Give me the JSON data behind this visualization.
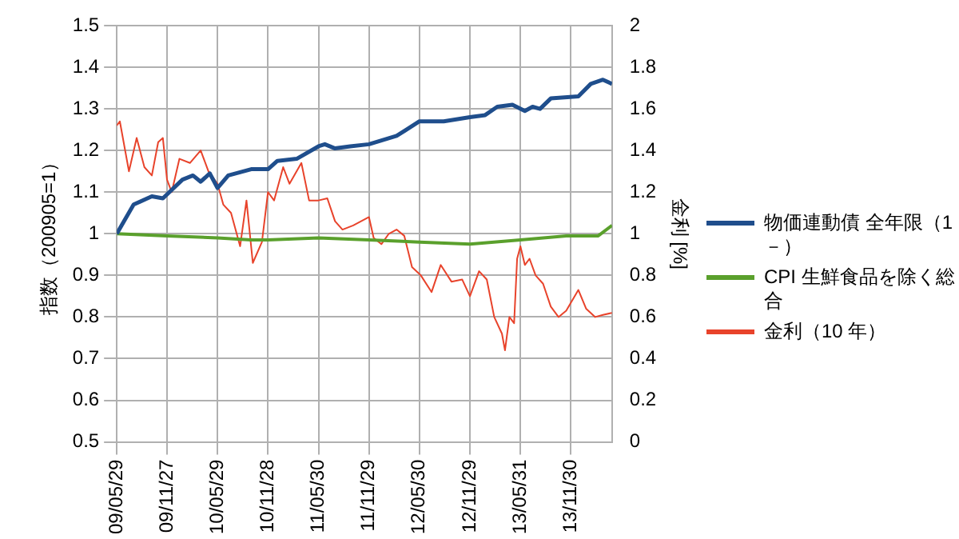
{
  "chart_data": {
    "type": "line",
    "ylabel": "指数（200905=1）",
    "y2label": "金利 [%]",
    "xlim": [
      "2009-05-29",
      "2014-04-28"
    ],
    "xticks": [
      {
        "value": "2009-05-29",
        "label": "09/05/29"
      },
      {
        "value": "2009-11-27",
        "label": "09/11/27"
      },
      {
        "value": "2010-05-29",
        "label": "10/05/29"
      },
      {
        "value": "2010-11-28",
        "label": "10/11/28"
      },
      {
        "value": "2011-05-30",
        "label": "11/05/30"
      },
      {
        "value": "2011-11-29",
        "label": "11/11/29"
      },
      {
        "value": "2012-05-30",
        "label": "12/05/30"
      },
      {
        "value": "2012-11-29",
        "label": "12/11/29"
      },
      {
        "value": "2013-05-31",
        "label": "13/05/31"
      },
      {
        "value": "2013-11-30",
        "label": "13/11/30"
      }
    ],
    "ylim": [
      0.5,
      1.5
    ],
    "yticks": [
      0.5,
      0.6,
      0.7,
      0.8,
      0.9,
      1,
      1.1,
      1.2,
      1.3,
      1.4,
      1.5
    ],
    "y2lim": [
      0,
      2
    ],
    "y2ticks": [
      0,
      0.2,
      0.4,
      0.6,
      0.8,
      1,
      1.2,
      1.4,
      1.6,
      1.8,
      2
    ],
    "grid": true,
    "legend": "right",
    "marker": "none",
    "line_style": "solid",
    "series": [
      {
        "name": "物価連動債 全年限（1－）",
        "color": "#1f4e8c",
        "x": [
          "2009-05-29",
          "2009-07-29",
          "2009-10-03",
          "2009-11-12",
          "2010-01-22",
          "2010-03-01",
          "2010-03-29",
          "2010-05-01",
          "2010-05-29",
          "2010-07-07",
          "2010-09-28",
          "2010-11-28",
          "2011-01-01",
          "2011-03-12",
          "2011-05-30",
          "2011-06-22",
          "2011-07-29",
          "2011-09-22",
          "2011-11-29",
          "2012-03-08",
          "2012-05-30",
          "2012-08-26",
          "2012-11-29",
          "2013-01-23",
          "2013-03-08",
          "2013-05-02",
          "2013-06-16",
          "2013-07-14",
          "2013-08-10",
          "2013-09-18",
          "2013-12-27",
          "2014-02-10",
          "2014-03-26",
          "2014-04-28"
        ],
        "values": [
          1.0,
          1.07,
          1.09,
          1.085,
          1.13,
          1.14,
          1.125,
          1.145,
          1.11,
          1.14,
          1.155,
          1.155,
          1.175,
          1.18,
          1.21,
          1.215,
          1.205,
          1.21,
          1.215,
          1.235,
          1.27,
          1.27,
          1.28,
          1.285,
          1.305,
          1.31,
          1.295,
          1.305,
          1.3,
          1.325,
          1.33,
          1.36,
          1.37,
          1.36
        ]
      },
      {
        "name": "CPI 生鮮食品を除く総合",
        "color": "#5aa02c",
        "x": [
          "2009-05-29",
          "2009-11-27",
          "2010-05-29",
          "2010-09-28",
          "2010-11-28",
          "2011-05-30",
          "2011-11-29",
          "2012-05-30",
          "2012-11-29",
          "2013-05-31",
          "2013-11-13",
          "2014-03-09",
          "2014-04-28"
        ],
        "values": [
          1.0,
          0.995,
          0.99,
          0.985,
          0.985,
          0.99,
          0.985,
          0.98,
          0.975,
          0.985,
          0.995,
          0.995,
          1.02
        ]
      },
      {
        "name": "金利（10 年）",
        "color": "#e8432b",
        "axis": "y2",
        "x": [
          "2009-05-29",
          "2009-06-09",
          "2009-07-12",
          "2009-08-09",
          "2009-09-06",
          "2009-10-03",
          "2009-10-26",
          "2009-11-12",
          "2009-11-27",
          "2009-12-14",
          "2010-01-11",
          "2010-02-18",
          "2010-03-29",
          "2010-04-26",
          "2010-05-29",
          "2010-06-19",
          "2010-07-17",
          "2010-08-19",
          "2010-09-11",
          "2010-10-04",
          "2010-11-06",
          "2010-11-28",
          "2010-12-20",
          "2011-01-22",
          "2011-02-14",
          "2011-03-29",
          "2011-04-26",
          "2011-05-30",
          "2011-07-01",
          "2011-07-29",
          "2011-08-25",
          "2011-10-03",
          "2011-11-29",
          "2011-12-16",
          "2012-01-13",
          "2012-02-09",
          "2012-03-08",
          "2012-04-05",
          "2012-05-03",
          "2012-06-04",
          "2012-07-13",
          "2012-08-15",
          "2012-09-23",
          "2012-11-01",
          "2012-11-29",
          "2013-01-01",
          "2013-01-29",
          "2013-02-25",
          "2013-03-25",
          "2013-04-05",
          "2013-04-21",
          "2013-05-08",
          "2013-05-19",
          "2013-05-31",
          "2013-06-16",
          "2013-07-03",
          "2013-07-25",
          "2013-08-21",
          "2013-09-18",
          "2013-10-16",
          "2013-11-13",
          "2013-12-27",
          "2014-01-24",
          "2014-02-26",
          "2014-03-26",
          "2014-04-28"
        ],
        "values": [
          1.52,
          1.54,
          1.3,
          1.46,
          1.32,
          1.28,
          1.44,
          1.46,
          1.26,
          1.2,
          1.36,
          1.34,
          1.4,
          1.3,
          1.24,
          1.14,
          1.1,
          0.94,
          1.16,
          0.86,
          0.96,
          1.2,
          1.16,
          1.32,
          1.24,
          1.34,
          1.16,
          1.16,
          1.17,
          1.06,
          1.02,
          1.04,
          1.08,
          0.98,
          0.95,
          1.0,
          1.02,
          0.99,
          0.84,
          0.8,
          0.72,
          0.85,
          0.77,
          0.78,
          0.7,
          0.82,
          0.78,
          0.6,
          0.52,
          0.44,
          0.6,
          0.57,
          0.88,
          0.94,
          0.85,
          0.88,
          0.8,
          0.76,
          0.65,
          0.6,
          0.63,
          0.73,
          0.64,
          0.6,
          0.61,
          0.62
        ]
      }
    ]
  }
}
